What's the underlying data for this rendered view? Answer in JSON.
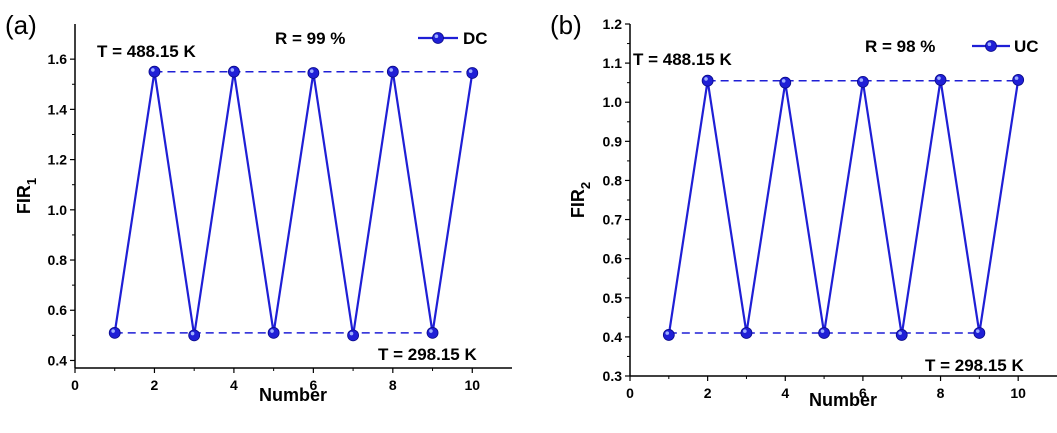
{
  "chart_data": [
    {
      "type": "line",
      "panel_label": "(a)",
      "xlabel": "Number",
      "ylabel_main": "FIR",
      "ylabel_sub": "1",
      "xlim": [
        0,
        11
      ],
      "ylim": [
        0.37,
        1.74
      ],
      "xticks": [
        0,
        2,
        4,
        6,
        8,
        10
      ],
      "yticks": [
        0.4,
        0.6,
        0.8,
        1.0,
        1.2,
        1.4,
        1.6
      ],
      "ytick_labels": [
        "0.4",
        "0.6",
        "0.8",
        "1.0",
        "1.2",
        "1.4",
        "1.6"
      ],
      "grid": false,
      "legend_position": "top-right",
      "series": [
        {
          "name": "DC",
          "color": "#1f1fd6",
          "x": [
            1,
            2,
            3,
            4,
            5,
            6,
            7,
            8,
            9,
            10
          ],
          "values": [
            0.51,
            1.55,
            0.5,
            1.55,
            0.51,
            1.545,
            0.5,
            1.55,
            0.51,
            1.545
          ]
        }
      ],
      "reference_lines": [
        {
          "y": 1.55,
          "x_from": 2,
          "x_to": 10
        },
        {
          "y": 0.51,
          "x_from": 1,
          "x_to": 9
        }
      ],
      "annotations": [
        {
          "id": "r",
          "text": "R = 99 %"
        },
        {
          "id": "t_high",
          "text": "T = 488.15 K"
        },
        {
          "id": "t_low",
          "text": "T = 298.15 K"
        }
      ]
    },
    {
      "type": "line",
      "panel_label": "(b)",
      "xlabel": "Number",
      "ylabel_main": "FIR",
      "ylabel_sub": "2",
      "xlim": [
        0,
        11
      ],
      "ylim": [
        0.3,
        1.2
      ],
      "xticks": [
        0,
        2,
        4,
        6,
        8,
        10
      ],
      "yticks": [
        0.3,
        0.4,
        0.5,
        0.6,
        0.7,
        0.8,
        0.9,
        1.0,
        1.1,
        1.2
      ],
      "ytick_labels": [
        "0.3",
        "0.4",
        "0.5",
        "0.6",
        "0.7",
        "0.8",
        "0.9",
        "1.0",
        "1.1",
        "1.2"
      ],
      "grid": false,
      "legend_position": "top-right",
      "series": [
        {
          "name": "UC",
          "color": "#1f1fd6",
          "x": [
            1,
            2,
            3,
            4,
            5,
            6,
            7,
            8,
            9,
            10
          ],
          "values": [
            0.405,
            1.055,
            0.41,
            1.05,
            0.41,
            1.052,
            0.405,
            1.057,
            0.41,
            1.057
          ]
        }
      ],
      "reference_lines": [
        {
          "y": 1.055,
          "x_from": 2,
          "x_to": 10
        },
        {
          "y": 0.41,
          "x_from": 1,
          "x_to": 9
        }
      ],
      "annotations": [
        {
          "id": "r",
          "text": "R = 98 %"
        },
        {
          "id": "t_high",
          "text": "T = 488.15 K"
        },
        {
          "id": "t_low",
          "text": "T = 298.15 K"
        }
      ]
    }
  ]
}
